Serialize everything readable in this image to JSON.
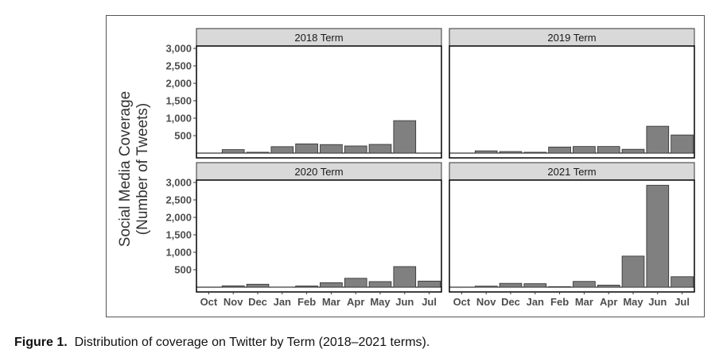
{
  "caption": {
    "label": "Figure 1.",
    "text": "Distribution of coverage on Twitter by Term (2018–2021 terms)."
  },
  "colors": {
    "bar_fill": "#808080",
    "bar_stroke": "#2b2b2b",
    "strip_fill": "#d9d9d9",
    "panel_border": "#000000"
  },
  "chart_data": {
    "type": "bar",
    "layout": "facet-grid 2x2",
    "ylabel_line1": "Social Media Coverage",
    "ylabel_line2": "(Number of Tweets)",
    "xlabel": "",
    "categories": [
      "Oct",
      "Nov",
      "Dec",
      "Jan",
      "Feb",
      "Mar",
      "Apr",
      "May",
      "Jun",
      "Jul"
    ],
    "yticks": [
      500,
      1000,
      1500,
      2000,
      2500,
      3000
    ],
    "ytick_labels": [
      "500",
      "1,000",
      "1,500",
      "2,000",
      "2,500",
      "3,000"
    ],
    "ylim": [
      0,
      3000
    ],
    "grid": false,
    "panels": [
      {
        "title": "2018 Term",
        "values": [
          0,
          100,
          25,
          185,
          265,
          245,
          205,
          250,
          930,
          0
        ]
      },
      {
        "title": "2019 Term",
        "values": [
          0,
          65,
          45,
          25,
          175,
          190,
          190,
          110,
          770,
          520
        ]
      },
      {
        "title": "2020 Term",
        "values": [
          0,
          40,
          85,
          5,
          35,
          130,
          255,
          160,
          590,
          175
        ]
      },
      {
        "title": "2021 Term",
        "values": [
          0,
          30,
          110,
          100,
          15,
          165,
          60,
          890,
          2920,
          300
        ]
      }
    ]
  }
}
